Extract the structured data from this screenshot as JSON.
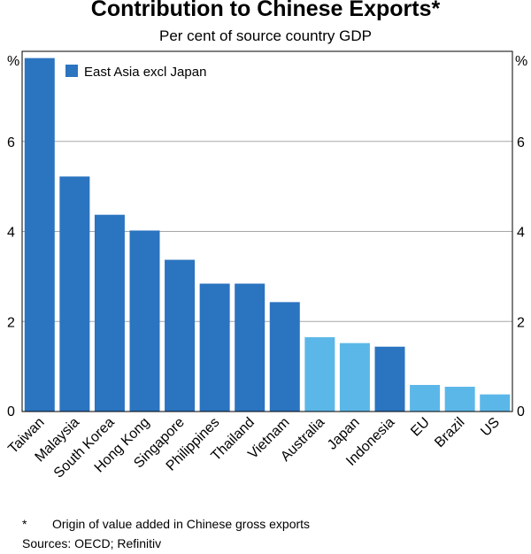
{
  "chart_data": {
    "type": "bar",
    "title": "Contribution to Chinese Exports*",
    "subtitle": "Per cent of source country GDP",
    "ylabel_left": "%",
    "ylabel_right": "%",
    "ylim": [
      0,
      8
    ],
    "yticks": [
      0,
      2,
      4,
      6
    ],
    "grid": true,
    "legend": {
      "position": "top-left",
      "entries": [
        {
          "label": "East Asia excl Japan",
          "color": "#2b74c0"
        }
      ]
    },
    "categories": [
      "Taiwan",
      "Malaysia",
      "South Korea",
      "Hong Kong",
      "Singapore",
      "Philippines",
      "Thailand",
      "Vietnam",
      "Australia",
      "Japan",
      "Indonesia",
      "EU",
      "Brazil",
      "US"
    ],
    "values": [
      7.85,
      5.22,
      4.37,
      4.02,
      3.37,
      2.84,
      2.84,
      2.43,
      1.65,
      1.52,
      1.44,
      0.59,
      0.55,
      0.38
    ],
    "groups": [
      "east-asia",
      "east-asia",
      "east-asia",
      "east-asia",
      "east-asia",
      "east-asia",
      "east-asia",
      "east-asia",
      "other",
      "other",
      "east-asia",
      "other",
      "other",
      "other"
    ],
    "colors": {
      "east-asia": "#2b74c0",
      "other": "#5bb7e8"
    }
  },
  "footnote": {
    "mark": "*",
    "text": "Origin of value added in Chinese gross exports"
  },
  "sources": "Sources: OECD; Refinitiv"
}
